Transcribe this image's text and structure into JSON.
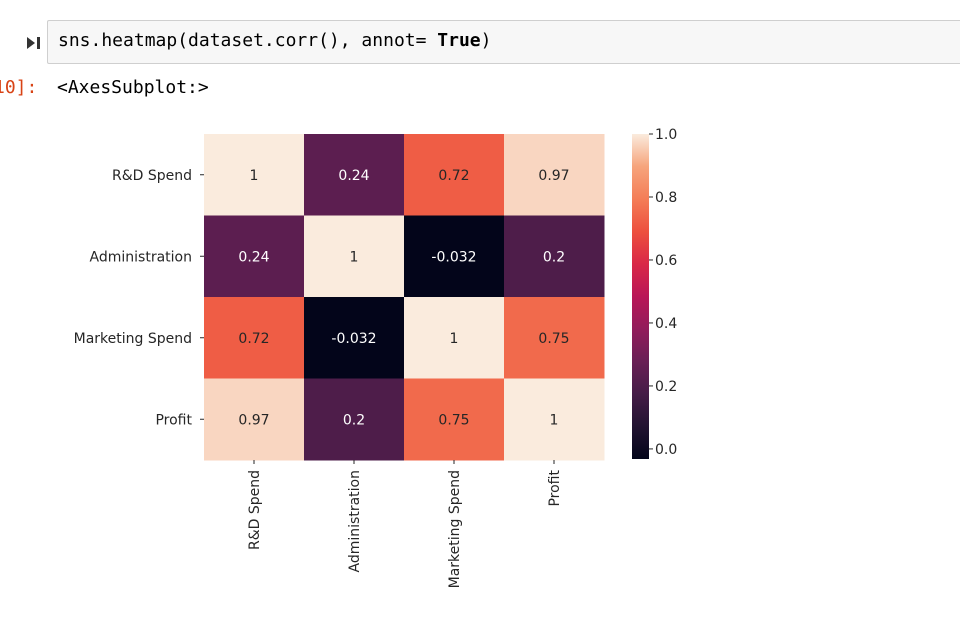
{
  "cell": {
    "input": {
      "code_prefix": "sns.heatmap(dataset.corr(), annot= ",
      "code_keyword": "True",
      "code_suffix": ")"
    },
    "output": {
      "prompt": "10]:",
      "text": "<AxesSubplot:>"
    }
  },
  "chart_data": {
    "type": "heatmap",
    "title": "",
    "rows": [
      "R&D Spend",
      "Administration",
      "Marketing Spend",
      "Profit"
    ],
    "columns": [
      "R&D Spend",
      "Administration",
      "Marketing Spend",
      "Profit"
    ],
    "values": [
      [
        1,
        0.24,
        0.72,
        0.97
      ],
      [
        0.24,
        1,
        -0.032,
        0.2
      ],
      [
        0.72,
        -0.032,
        1,
        0.75
      ],
      [
        0.97,
        0.2,
        0.75,
        1
      ]
    ],
    "annotations": [
      [
        "1",
        "0.24",
        "0.72",
        "0.97"
      ],
      [
        "0.24",
        "1",
        "-0.032",
        "0.2"
      ],
      [
        "0.72",
        "-0.032",
        "1",
        "0.75"
      ],
      [
        "0.97",
        "0.2",
        "0.75",
        "1"
      ]
    ],
    "colormap": "rocket",
    "vmin": -0.032,
    "vmax": 1,
    "colorbar_ticks": [
      0.0,
      0.2,
      0.4,
      0.6,
      0.8,
      1.0
    ],
    "colorbar_tick_labels": [
      "0.0",
      "0.2",
      "0.4",
      "0.6",
      "0.8",
      "1.0"
    ],
    "xtick_rotation": "vertical"
  }
}
